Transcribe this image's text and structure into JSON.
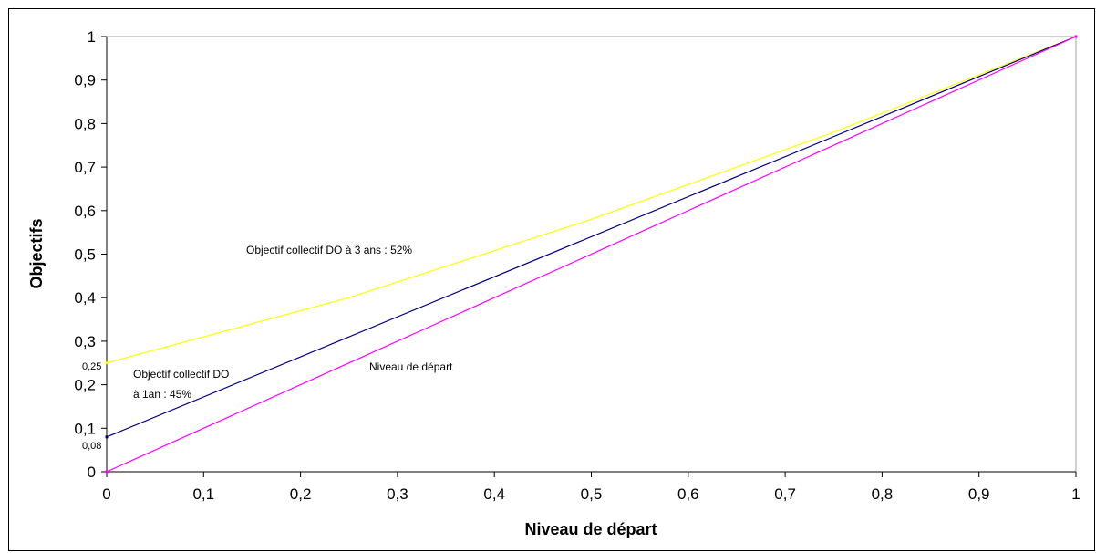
{
  "chart_data": {
    "type": "line",
    "title": "",
    "xlabel": "Niveau de départ",
    "ylabel": "Objectifs",
    "xlim": [
      0,
      1
    ],
    "ylim": [
      0,
      1
    ],
    "x_ticks": [
      "0",
      "0,1",
      "0,2",
      "0,3",
      "0,4",
      "0,5",
      "0,6",
      "0,7",
      "0,8",
      "0,9",
      "1"
    ],
    "y_ticks": [
      "0",
      "0,1",
      "0,2",
      "0,3",
      "0,4",
      "0,5",
      "0,6",
      "0,7",
      "0,8",
      "0,9",
      "1"
    ],
    "grid": false,
    "legend": "none",
    "series": [
      {
        "name": "Objectif collectif DO à 3 ans : 52%",
        "color": "#ffff00",
        "x": [
          0,
          0.25,
          0.5,
          0.75,
          1
        ],
        "y": [
          0.25,
          0.4,
          0.58,
          0.78,
          1
        ]
      },
      {
        "name": "Objectif collectif DO à 1an : 45%",
        "color": "#000080",
        "x": [
          0,
          1
        ],
        "y": [
          0.08,
          1
        ]
      },
      {
        "name": "Niveau de départ",
        "color": "#ff00ff",
        "x": [
          0,
          1
        ],
        "y": [
          0,
          1
        ]
      }
    ],
    "annotations": {
      "yellow_label": "Objectif collectif DO à 3 ans : 52%",
      "blue_label_line1": "Objectif collectif DO",
      "blue_label_line2": "à 1an : 45%",
      "magenta_label": "Niveau de départ",
      "start_yellow": "0,25",
      "start_blue": "0,08"
    }
  }
}
